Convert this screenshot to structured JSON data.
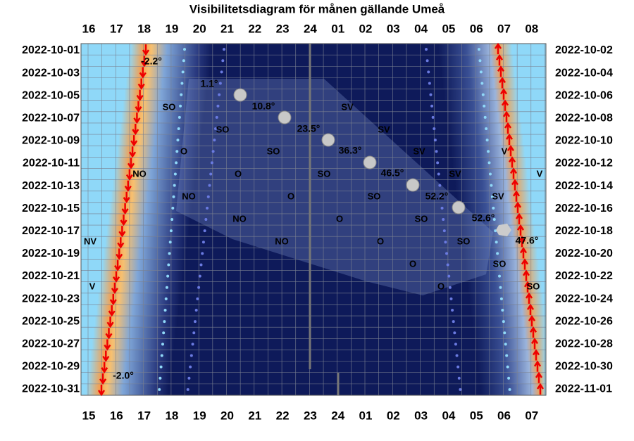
{
  "title": "Visibilitetsdiagram för månen gällande Umeå",
  "top_hours": [
    "16",
    "17",
    "18",
    "19",
    "20",
    "21",
    "22",
    "23",
    "24",
    "01",
    "02",
    "03",
    "04",
    "05",
    "06",
    "07",
    "08"
  ],
  "bottom_hours": [
    "15",
    "16",
    "17",
    "18",
    "19",
    "20",
    "21",
    "22",
    "23",
    "24",
    "01",
    "02",
    "03",
    "04",
    "05",
    "06",
    "07"
  ],
  "left_dates": [
    "2022-10-01",
    "2022-10-03",
    "2022-10-05",
    "2022-10-07",
    "2022-10-09",
    "2022-10-11",
    "2022-10-13",
    "2022-10-15",
    "2022-10-17",
    "2022-10-19",
    "2022-10-21",
    "2022-10-23",
    "2022-10-25",
    "2022-10-27",
    "2022-10-29",
    "2022-10-31"
  ],
  "right_dates": [
    "2022-10-02",
    "2022-10-04",
    "2022-10-06",
    "2022-10-08",
    "2022-10-10",
    "2022-10-12",
    "2022-10-14",
    "2022-10-16",
    "2022-10-18",
    "2022-10-20",
    "2022-10-22",
    "2022-10-24",
    "2022-10-26",
    "2022-10-28",
    "2022-10-30",
    "2022-11-01"
  ],
  "altitudes": [
    "-2.2°",
    "1.1°",
    "10.8°",
    "23.5°",
    "36.3°",
    "46.5°",
    "52.2°",
    "52.6°",
    "47.6°",
    "-2.0°"
  ],
  "directions": [
    "SO",
    "SV",
    "SO",
    "SV",
    "O",
    "SO",
    "SV",
    "V",
    "NO",
    "O",
    "SO",
    "SV",
    "V",
    "NO",
    "O",
    "SO",
    "SV",
    "NO",
    "O",
    "SO",
    "NV",
    "NO",
    "O",
    "SO",
    "O",
    "SO",
    "V",
    "O",
    "SO"
  ]
}
